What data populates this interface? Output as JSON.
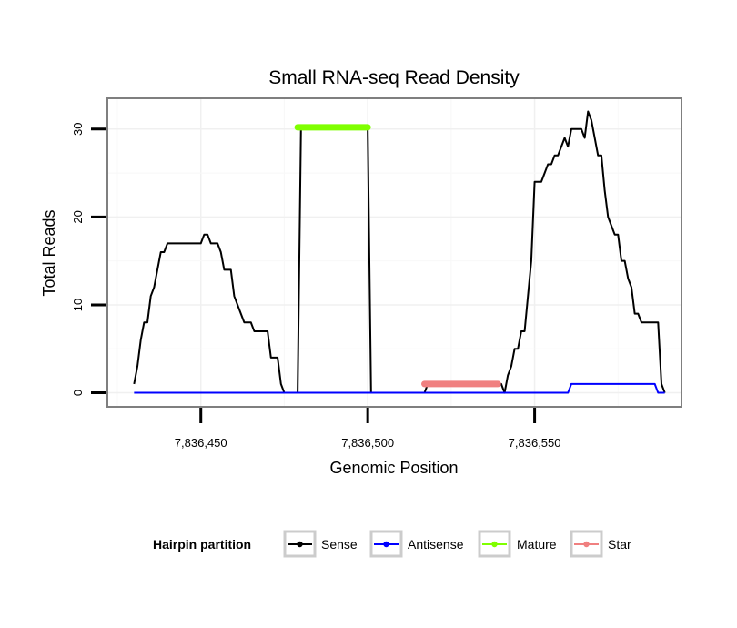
{
  "chart_data": {
    "type": "line",
    "title": "Small RNA-seq Read Density",
    "xlabel": "Genomic Position",
    "ylabel": "Total Reads",
    "xlim": [
      7836422,
      7836594
    ],
    "ylim": [
      -1.6,
      33.5
    ],
    "x_ticks": [
      7836450,
      7836500,
      7836550
    ],
    "x_tick_labels": [
      "7,836,450",
      "7,836,500",
      "7,836,550"
    ],
    "y_ticks": [
      0,
      10,
      20,
      30
    ],
    "y_tick_labels": [
      "0",
      "10",
      "20",
      "30"
    ],
    "grid": true,
    "legend": {
      "title": "Hairpin partition",
      "position": "bottom",
      "entries": [
        "Sense",
        "Antisense",
        "Mature",
        "Star"
      ]
    },
    "series": [
      {
        "name": "Sense",
        "color": "#000000",
        "line_width": 2,
        "points": [
          [
            7836430,
            1
          ],
          [
            7836431,
            3
          ],
          [
            7836432,
            6
          ],
          [
            7836433,
            8
          ],
          [
            7836434,
            8
          ],
          [
            7836435,
            11
          ],
          [
            7836436,
            12
          ],
          [
            7836437,
            14
          ],
          [
            7836438,
            16
          ],
          [
            7836439,
            16
          ],
          [
            7836440,
            17
          ],
          [
            7836441,
            17
          ],
          [
            7836443,
            17
          ],
          [
            7836445,
            17
          ],
          [
            7836447,
            17
          ],
          [
            7836449,
            17
          ],
          [
            7836450,
            17
          ],
          [
            7836451,
            18
          ],
          [
            7836452,
            18
          ],
          [
            7836453,
            17
          ],
          [
            7836455,
            17
          ],
          [
            7836456,
            16
          ],
          [
            7836457,
            14
          ],
          [
            7836459,
            14
          ],
          [
            7836460,
            11
          ],
          [
            7836461,
            10
          ],
          [
            7836462,
            9
          ],
          [
            7836463,
            8
          ],
          [
            7836465,
            8
          ],
          [
            7836466,
            7
          ],
          [
            7836468,
            7
          ],
          [
            7836470,
            7
          ],
          [
            7836471,
            4
          ],
          [
            7836473,
            4
          ],
          [
            7836474,
            1
          ],
          [
            7836475,
            0
          ],
          [
            7836479,
            0
          ],
          [
            7836480,
            30
          ],
          [
            7836486,
            30
          ],
          [
            7836492,
            30
          ],
          [
            7836500,
            30
          ],
          [
            7836501,
            0
          ],
          [
            7836508,
            0
          ],
          [
            7836517,
            0
          ],
          [
            7836518,
            1
          ],
          [
            7836540,
            1
          ],
          [
            7836541,
            0
          ],
          [
            7836542,
            2
          ],
          [
            7836543,
            3
          ],
          [
            7836544,
            5
          ],
          [
            7836545,
            5
          ],
          [
            7836546,
            7
          ],
          [
            7836547,
            7
          ],
          [
            7836548,
            11
          ],
          [
            7836549,
            15
          ],
          [
            7836550,
            24
          ],
          [
            7836551,
            24
          ],
          [
            7836552,
            24
          ],
          [
            7836553,
            25
          ],
          [
            7836554,
            26
          ],
          [
            7836555,
            26
          ],
          [
            7836556,
            27
          ],
          [
            7836557,
            27
          ],
          [
            7836558,
            28
          ],
          [
            7836559,
            29
          ],
          [
            7836560,
            28
          ],
          [
            7836561,
            30
          ],
          [
            7836562,
            30
          ],
          [
            7836563,
            30
          ],
          [
            7836564,
            30
          ],
          [
            7836565,
            29
          ],
          [
            7836566,
            32
          ],
          [
            7836567,
            31
          ],
          [
            7836568,
            29
          ],
          [
            7836569,
            27
          ],
          [
            7836570,
            27
          ],
          [
            7836571,
            23
          ],
          [
            7836572,
            20
          ],
          [
            7836573,
            19
          ],
          [
            7836574,
            18
          ],
          [
            7836575,
            18
          ],
          [
            7836576,
            15
          ],
          [
            7836577,
            15
          ],
          [
            7836578,
            13
          ],
          [
            7836579,
            12
          ],
          [
            7836580,
            9
          ],
          [
            7836581,
            9
          ],
          [
            7836582,
            8
          ],
          [
            7836585,
            8
          ],
          [
            7836587,
            8
          ],
          [
            7836588,
            1
          ],
          [
            7836589,
            0
          ]
        ]
      },
      {
        "name": "Antisense",
        "color": "#0000FF",
        "line_width": 2,
        "points": [
          [
            7836430,
            0
          ],
          [
            7836560,
            0
          ],
          [
            7836561,
            1
          ],
          [
            7836582,
            1
          ],
          [
            7836586,
            1
          ],
          [
            7836587,
            0
          ],
          [
            7836589,
            0
          ]
        ]
      },
      {
        "name": "Mature",
        "color": "#7FFF00",
        "line_width": 7,
        "points": [
          [
            7836479,
            30.2
          ],
          [
            7836500,
            30.2
          ]
        ]
      },
      {
        "name": "Star",
        "color": "#F08080",
        "line_width": 7,
        "points": [
          [
            7836517,
            1.0
          ],
          [
            7836539,
            1.0
          ]
        ]
      }
    ]
  }
}
